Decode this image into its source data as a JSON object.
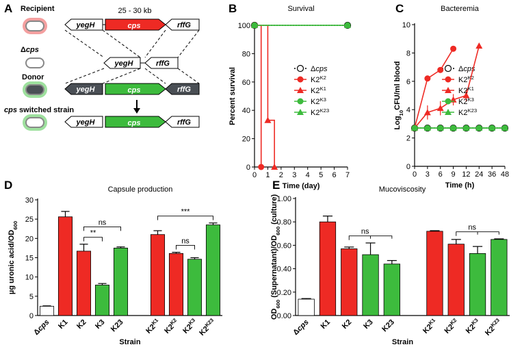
{
  "diagram": {
    "panel_label": "A",
    "size_label": "25 - 30 kb",
    "rows": [
      {
        "label": "Recipient",
        "genes": [
          "yegH",
          "cps",
          "rffG"
        ]
      },
      {
        "label": "Δcps",
        "genes": [
          "yegH",
          "rffG"
        ]
      },
      {
        "label": "Donor",
        "genes": [
          "yegH",
          "cps",
          "rffG"
        ]
      },
      {
        "label": "cps switched strain",
        "genes": [
          "yegH",
          "cps",
          "rffG"
        ]
      }
    ]
  },
  "chart_data": [
    {
      "panel_label": "B",
      "type": "line",
      "step": true,
      "title": "Survival",
      "xlabel": "Time (day)",
      "ylabel": "Percent survival",
      "xlim": [
        0,
        7
      ],
      "xticks": [
        0,
        1,
        2,
        3,
        4,
        5,
        6,
        7
      ],
      "ylim": [
        0,
        100
      ],
      "yticks": [
        0,
        20,
        40,
        60,
        80,
        100
      ],
      "series": [
        {
          "name": "Δcps",
          "color": "#000000",
          "marker": "circle-open",
          "dashed": true,
          "x": [
            0,
            7
          ],
          "values": [
            100,
            100
          ]
        },
        {
          "name": "K2K2",
          "color": "#ee2a24",
          "marker": "circle",
          "x": [
            0,
            0.5
          ],
          "values": [
            100,
            0
          ]
        },
        {
          "name": "K2K1",
          "color": "#ee2a24",
          "marker": "triangle",
          "x": [
            0,
            1,
            1.5
          ],
          "values": [
            100,
            33,
            0
          ]
        },
        {
          "name": "K2K3",
          "color": "#3dbb3d",
          "marker": "circle",
          "x": [
            0,
            7
          ],
          "values": [
            100,
            100
          ]
        },
        {
          "name": "K2K23",
          "color": "#3dbb3d",
          "marker": "triangle",
          "x": [
            0,
            7
          ],
          "values": [
            100,
            100
          ]
        }
      ]
    },
    {
      "panel_label": "C",
      "type": "line",
      "title": "Bacteremia",
      "xlabel": "Time (h)",
      "ylabel": "Log10CFU/ml blood",
      "categories": [
        "0",
        "3",
        "6",
        "9",
        "12",
        "24",
        "36",
        "48"
      ],
      "ylim": [
        0,
        10
      ],
      "yticks": [
        0,
        2,
        4,
        6,
        8,
        10
      ],
      "series": [
        {
          "name": "Δcps",
          "color": "#000000",
          "marker": "circle-open",
          "dashed": true,
          "values": [
            2.7,
            2.7,
            2.7,
            2.7,
            2.7,
            2.7,
            2.7,
            2.7
          ]
        },
        {
          "name": "K2K2",
          "color": "#ee2a24",
          "marker": "circle",
          "values": [
            2.7,
            6.2,
            6.8,
            8.3,
            null,
            null,
            null,
            null
          ],
          "errors": [
            0,
            0.2,
            0.2,
            0.1,
            null,
            null,
            null,
            null
          ]
        },
        {
          "name": "K2K1",
          "color": "#ee2a24",
          "marker": "triangle",
          "values": [
            2.7,
            3.8,
            4.1,
            4.7,
            5.0,
            8.5,
            null,
            null
          ],
          "errors": [
            0,
            0.5,
            0.5,
            0.4,
            0.4,
            0,
            null,
            null
          ]
        },
        {
          "name": "K2K3",
          "color": "#3dbb3d",
          "marker": "circle",
          "values": [
            2.7,
            2.7,
            2.7,
            2.7,
            2.7,
            2.7,
            2.7,
            2.7
          ]
        },
        {
          "name": "K2K23",
          "color": "#3dbb3d",
          "marker": "triangle",
          "values": [
            2.7,
            2.7,
            2.7,
            2.7,
            2.7,
            2.7,
            2.7,
            2.7
          ]
        }
      ]
    },
    {
      "panel_label": "D",
      "type": "bar",
      "title": "Capsule production",
      "xlabel": "Strain",
      "ylabel": "µg uronic acid/OD600",
      "categories": [
        "Δcps",
        "K1",
        "K2",
        "K3",
        "K23",
        "K2K1",
        "K2K2",
        "K2K3",
        "K2K23"
      ],
      "values": [
        2.4,
        25.6,
        16.7,
        7.9,
        17.5,
        21.0,
        16.1,
        14.6,
        23.5
      ],
      "errors": [
        0.1,
        1.4,
        1.8,
        0.4,
        0.3,
        1.0,
        0.3,
        0.4,
        0.5
      ],
      "colors": [
        "#ffffff",
        "#ee2a24",
        "#ee2a24",
        "#3dbb3d",
        "#3dbb3d",
        "#ee2a24",
        "#ee2a24",
        "#3dbb3d",
        "#3dbb3d"
      ],
      "ylim": [
        0,
        30
      ],
      "yticks": [
        0,
        5,
        10,
        15,
        20,
        25,
        30
      ],
      "annotations": [
        {
          "text": "**",
          "from": 2,
          "to": [
            3
          ]
        },
        {
          "text": "ns",
          "from": 2,
          "to": [
            4
          ]
        },
        {
          "text": "ns",
          "from": 6,
          "to": [
            7
          ]
        },
        {
          "text": "***",
          "from": 5,
          "to": [
            8
          ]
        }
      ]
    },
    {
      "panel_label": "E",
      "type": "bar",
      "title": "Mucoviscosity",
      "xlabel": "Strain",
      "ylabel": "OD600 (Supernatant)/OD600 (culture)",
      "categories": [
        "Δcps",
        "K1",
        "K2",
        "K3",
        "K23",
        "K2K1",
        "K2K2",
        "K2K3",
        "K2K23"
      ],
      "values": [
        0.14,
        0.8,
        0.57,
        0.52,
        0.44,
        0.72,
        0.61,
        0.53,
        0.65
      ],
      "errors": [
        0.005,
        0.05,
        0.015,
        0.1,
        0.03,
        0.005,
        0.04,
        0.06,
        0.005
      ],
      "colors": [
        "#ffffff",
        "#ee2a24",
        "#ee2a24",
        "#3dbb3d",
        "#3dbb3d",
        "#ee2a24",
        "#ee2a24",
        "#3dbb3d",
        "#3dbb3d"
      ],
      "ylim": [
        0,
        1
      ],
      "yticks": [
        {
          "value": 0,
          "label": "0.00"
        },
        {
          "value": 0.2,
          "label": "0.20"
        },
        {
          "value": 0.4,
          "label": "0.40"
        },
        {
          "value": 0.6,
          "label": "0.60"
        },
        {
          "value": 0.8,
          "label": "0.80"
        },
        {
          "value": 1,
          "label": "1.00"
        }
      ],
      "annotations": [
        {
          "text": "ns",
          "from": 2,
          "to": [
            3,
            4
          ]
        },
        {
          "text": "ns",
          "from": 6,
          "to": [
            7,
            8
          ]
        }
      ]
    }
  ]
}
